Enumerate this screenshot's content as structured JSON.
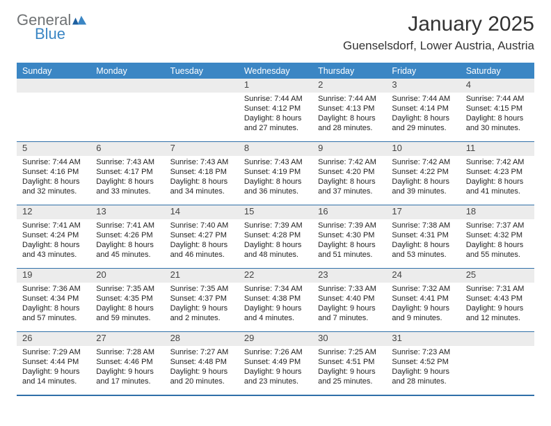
{
  "logo": {
    "word1": "General",
    "word2": "Blue"
  },
  "title": "January 2025",
  "location": "Guenselsdorf, Lower Austria, Austria",
  "colors": {
    "header_blue": "#3b86c4",
    "divider_blue": "#2f6fa8",
    "row_alt": "#ececec",
    "logo_gray": "#6f7274",
    "logo_blue": "#3b86c4",
    "background": "#ffffff",
    "text": "#2a2a2a"
  },
  "days_of_week": [
    "Sunday",
    "Monday",
    "Tuesday",
    "Wednesday",
    "Thursday",
    "Friday",
    "Saturday"
  ],
  "weeks": [
    [
      {
        "n": "",
        "lines": []
      },
      {
        "n": "",
        "lines": []
      },
      {
        "n": "",
        "lines": []
      },
      {
        "n": "1",
        "lines": [
          "Sunrise: 7:44 AM",
          "Sunset: 4:12 PM",
          "Daylight: 8 hours",
          "and 27 minutes."
        ]
      },
      {
        "n": "2",
        "lines": [
          "Sunrise: 7:44 AM",
          "Sunset: 4:13 PM",
          "Daylight: 8 hours",
          "and 28 minutes."
        ]
      },
      {
        "n": "3",
        "lines": [
          "Sunrise: 7:44 AM",
          "Sunset: 4:14 PM",
          "Daylight: 8 hours",
          "and 29 minutes."
        ]
      },
      {
        "n": "4",
        "lines": [
          "Sunrise: 7:44 AM",
          "Sunset: 4:15 PM",
          "Daylight: 8 hours",
          "and 30 minutes."
        ]
      }
    ],
    [
      {
        "n": "5",
        "lines": [
          "Sunrise: 7:44 AM",
          "Sunset: 4:16 PM",
          "Daylight: 8 hours",
          "and 32 minutes."
        ]
      },
      {
        "n": "6",
        "lines": [
          "Sunrise: 7:43 AM",
          "Sunset: 4:17 PM",
          "Daylight: 8 hours",
          "and 33 minutes."
        ]
      },
      {
        "n": "7",
        "lines": [
          "Sunrise: 7:43 AM",
          "Sunset: 4:18 PM",
          "Daylight: 8 hours",
          "and 34 minutes."
        ]
      },
      {
        "n": "8",
        "lines": [
          "Sunrise: 7:43 AM",
          "Sunset: 4:19 PM",
          "Daylight: 8 hours",
          "and 36 minutes."
        ]
      },
      {
        "n": "9",
        "lines": [
          "Sunrise: 7:42 AM",
          "Sunset: 4:20 PM",
          "Daylight: 8 hours",
          "and 37 minutes."
        ]
      },
      {
        "n": "10",
        "lines": [
          "Sunrise: 7:42 AM",
          "Sunset: 4:22 PM",
          "Daylight: 8 hours",
          "and 39 minutes."
        ]
      },
      {
        "n": "11",
        "lines": [
          "Sunrise: 7:42 AM",
          "Sunset: 4:23 PM",
          "Daylight: 8 hours",
          "and 41 minutes."
        ]
      }
    ],
    [
      {
        "n": "12",
        "lines": [
          "Sunrise: 7:41 AM",
          "Sunset: 4:24 PM",
          "Daylight: 8 hours",
          "and 43 minutes."
        ]
      },
      {
        "n": "13",
        "lines": [
          "Sunrise: 7:41 AM",
          "Sunset: 4:26 PM",
          "Daylight: 8 hours",
          "and 45 minutes."
        ]
      },
      {
        "n": "14",
        "lines": [
          "Sunrise: 7:40 AM",
          "Sunset: 4:27 PM",
          "Daylight: 8 hours",
          "and 46 minutes."
        ]
      },
      {
        "n": "15",
        "lines": [
          "Sunrise: 7:39 AM",
          "Sunset: 4:28 PM",
          "Daylight: 8 hours",
          "and 48 minutes."
        ]
      },
      {
        "n": "16",
        "lines": [
          "Sunrise: 7:39 AM",
          "Sunset: 4:30 PM",
          "Daylight: 8 hours",
          "and 51 minutes."
        ]
      },
      {
        "n": "17",
        "lines": [
          "Sunrise: 7:38 AM",
          "Sunset: 4:31 PM",
          "Daylight: 8 hours",
          "and 53 minutes."
        ]
      },
      {
        "n": "18",
        "lines": [
          "Sunrise: 7:37 AM",
          "Sunset: 4:32 PM",
          "Daylight: 8 hours",
          "and 55 minutes."
        ]
      }
    ],
    [
      {
        "n": "19",
        "lines": [
          "Sunrise: 7:36 AM",
          "Sunset: 4:34 PM",
          "Daylight: 8 hours",
          "and 57 minutes."
        ]
      },
      {
        "n": "20",
        "lines": [
          "Sunrise: 7:35 AM",
          "Sunset: 4:35 PM",
          "Daylight: 8 hours",
          "and 59 minutes."
        ]
      },
      {
        "n": "21",
        "lines": [
          "Sunrise: 7:35 AM",
          "Sunset: 4:37 PM",
          "Daylight: 9 hours",
          "and 2 minutes."
        ]
      },
      {
        "n": "22",
        "lines": [
          "Sunrise: 7:34 AM",
          "Sunset: 4:38 PM",
          "Daylight: 9 hours",
          "and 4 minutes."
        ]
      },
      {
        "n": "23",
        "lines": [
          "Sunrise: 7:33 AM",
          "Sunset: 4:40 PM",
          "Daylight: 9 hours",
          "and 7 minutes."
        ]
      },
      {
        "n": "24",
        "lines": [
          "Sunrise: 7:32 AM",
          "Sunset: 4:41 PM",
          "Daylight: 9 hours",
          "and 9 minutes."
        ]
      },
      {
        "n": "25",
        "lines": [
          "Sunrise: 7:31 AM",
          "Sunset: 4:43 PM",
          "Daylight: 9 hours",
          "and 12 minutes."
        ]
      }
    ],
    [
      {
        "n": "26",
        "lines": [
          "Sunrise: 7:29 AM",
          "Sunset: 4:44 PM",
          "Daylight: 9 hours",
          "and 14 minutes."
        ]
      },
      {
        "n": "27",
        "lines": [
          "Sunrise: 7:28 AM",
          "Sunset: 4:46 PM",
          "Daylight: 9 hours",
          "and 17 minutes."
        ]
      },
      {
        "n": "28",
        "lines": [
          "Sunrise: 7:27 AM",
          "Sunset: 4:48 PM",
          "Daylight: 9 hours",
          "and 20 minutes."
        ]
      },
      {
        "n": "29",
        "lines": [
          "Sunrise: 7:26 AM",
          "Sunset: 4:49 PM",
          "Daylight: 9 hours",
          "and 23 minutes."
        ]
      },
      {
        "n": "30",
        "lines": [
          "Sunrise: 7:25 AM",
          "Sunset: 4:51 PM",
          "Daylight: 9 hours",
          "and 25 minutes."
        ]
      },
      {
        "n": "31",
        "lines": [
          "Sunrise: 7:23 AM",
          "Sunset: 4:52 PM",
          "Daylight: 9 hours",
          "and 28 minutes."
        ]
      },
      {
        "n": "",
        "lines": []
      }
    ]
  ]
}
